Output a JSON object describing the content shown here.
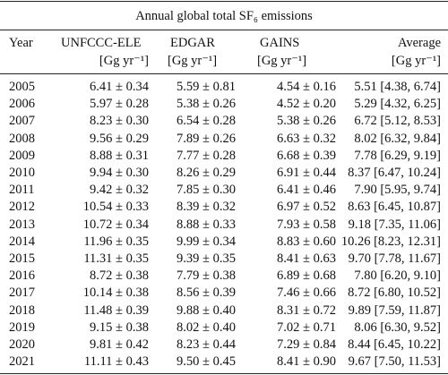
{
  "title": "Annual global total SF₆ emissions",
  "table": {
    "columns": [
      {
        "name": "Year"
      },
      {
        "name": "UNFCCC-ELE",
        "unit": "[Gg yr⁻¹]"
      },
      {
        "name": "EDGAR",
        "unit": "[Gg yr⁻¹]"
      },
      {
        "name": "GAINS",
        "unit": "[Gg yr⁻¹]"
      },
      {
        "name": "Average",
        "unit": "[Gg yr⁻¹]"
      }
    ],
    "rows": [
      [
        "2005",
        "6.41 ± 0.34",
        "5.59 ± 0.81",
        "4.54 ± 0.16",
        "5.51 [4.38, 6.74]"
      ],
      [
        "2006",
        "5.97 ± 0.28",
        "5.38 ± 0.26",
        "4.52 ± 0.20",
        "5.29 [4.32, 6.25]"
      ],
      [
        "2007",
        "8.23 ± 0.30",
        "6.54 ± 0.28",
        "5.38 ± 0.26",
        "6.72 [5.12, 8.53]"
      ],
      [
        "2008",
        "9.56 ± 0.29",
        "7.89 ± 0.26",
        "6.63 ± 0.32",
        "8.02 [6.32, 9.84]"
      ],
      [
        "2009",
        "8.88 ± 0.31",
        "7.77 ± 0.28",
        "6.68 ± 0.39",
        "7.78 [6.29, 9.19]"
      ],
      [
        "2010",
        "9.94 ± 0.30",
        "8.26 ± 0.29",
        "6.91 ± 0.44",
        "8.37 [6.47, 10.24]"
      ],
      [
        "2011",
        "9.42 ± 0.32",
        "7.85 ± 0.30",
        "6.41 ± 0.46",
        "7.90 [5.95, 9.74]"
      ],
      [
        "2012",
        "10.54 ± 0.33",
        "8.39 ± 0.32",
        "6.97 ± 0.52",
        "8.63 [6.45, 10.87]"
      ],
      [
        "2013",
        "10.72 ± 0.34",
        "8.88 ± 0.33",
        "7.93 ± 0.58",
        "9.18 [7.35, 11.06]"
      ],
      [
        "2014",
        "11.96 ± 0.35",
        "9.99 ± 0.34",
        "8.83 ± 0.60",
        "10.26 [8.23, 12.31]"
      ],
      [
        "2015",
        "11.31 ± 0.35",
        "9.39 ± 0.35",
        "8.41 ± 0.63",
        "9.70 [7.78, 11.67]"
      ],
      [
        "2016",
        "8.72 ± 0.38",
        "7.79 ± 0.38",
        "6.89 ± 0.68",
        "7.80 [6.20, 9.10]"
      ],
      [
        "2017",
        "10.14 ± 0.38",
        "8.56 ± 0.39",
        "7.46 ± 0.66",
        "8.72 [6.80, 10.52]"
      ],
      [
        "2018",
        "11.48 ± 0.39",
        "9.88 ± 0.40",
        "8.31 ± 0.72",
        "9.89 [7.59, 11.87]"
      ],
      [
        "2019",
        "9.15 ± 0.38",
        "8.02 ± 0.40",
        "7.02 ± 0.71",
        "8.06 [6.30, 9.52]"
      ],
      [
        "2020",
        "9.81 ± 0.42",
        "8.23 ± 0.44",
        "7.29 ± 0.84",
        "8.44 [6.45, 10.22]"
      ],
      [
        "2021",
        "11.11 ± 0.43",
        "9.50 ± 0.45",
        "8.41 ± 0.90",
        "9.67 [7.50, 11.53]"
      ]
    ]
  }
}
